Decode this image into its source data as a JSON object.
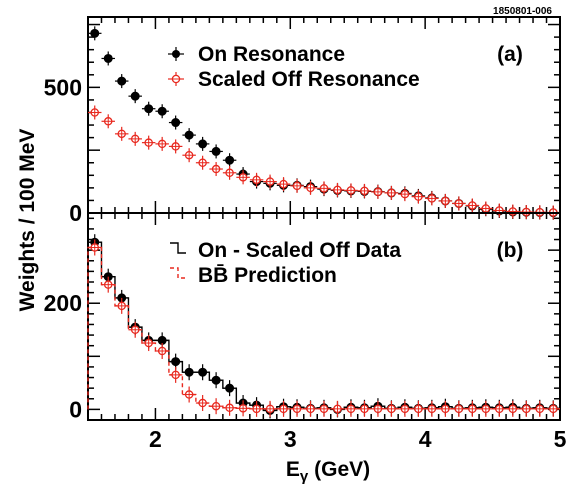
{
  "figure_id": "1850801-006",
  "ylabel": "Weights / 100 MeV",
  "xlabel": "E",
  "xlabel_sub": "γ",
  "xlabel_unit": "(GeV)",
  "chart_data": [
    {
      "panel": "(a)",
      "type": "scatter",
      "xlim": [
        1.5,
        5.0
      ],
      "ylim": [
        0,
        780
      ],
      "x_ticks": [
        2,
        3,
        4,
        5
      ],
      "y_ticks": [
        0,
        500
      ],
      "legend_placement": "top-right",
      "series": [
        {
          "name": "On Resonance",
          "marker": "filled-circle",
          "color": "#000000",
          "x": [
            1.55,
            1.65,
            1.75,
            1.85,
            1.95,
            2.05,
            2.15,
            2.25,
            2.35,
            2.45,
            2.55,
            2.65,
            2.75,
            2.85,
            2.95,
            3.05,
            3.15,
            3.25,
            3.35,
            3.45,
            3.55,
            3.65,
            3.75,
            3.85,
            3.95,
            4.05,
            4.15,
            4.25,
            4.35,
            4.45,
            4.55,
            4.65,
            4.75,
            4.85,
            4.95
          ],
          "y": [
            715,
            615,
            525,
            465,
            415,
            405,
            360,
            310,
            275,
            245,
            210,
            155,
            125,
            118,
            110,
            110,
            105,
            95,
            90,
            88,
            86,
            85,
            80,
            78,
            68,
            60,
            48,
            38,
            28,
            15,
            8,
            4,
            3,
            2,
            1
          ]
        },
        {
          "name": "Scaled Off Resonance",
          "marker": "open-circle-cross",
          "color": "#e8281e",
          "x": [
            1.55,
            1.65,
            1.75,
            1.85,
            1.95,
            2.05,
            2.15,
            2.25,
            2.35,
            2.45,
            2.55,
            2.65,
            2.75,
            2.85,
            2.95,
            3.05,
            3.15,
            3.25,
            3.35,
            3.45,
            3.55,
            3.65,
            3.75,
            3.85,
            3.95,
            4.05,
            4.15,
            4.25,
            4.35,
            4.45,
            4.55,
            4.65,
            4.75,
            4.85,
            4.95
          ],
          "y": [
            400,
            365,
            315,
            295,
            280,
            275,
            265,
            230,
            200,
            175,
            160,
            142,
            132,
            125,
            115,
            108,
            100,
            98,
            92,
            90,
            88,
            84,
            80,
            75,
            65,
            58,
            48,
            38,
            30,
            18,
            10,
            6,
            4,
            3,
            2
          ]
        }
      ]
    },
    {
      "panel": "(b)",
      "type": "scatter",
      "xlim": [
        1.5,
        5.0
      ],
      "ylim": [
        -20,
        370
      ],
      "x_ticks": [
        2,
        3,
        4,
        5
      ],
      "y_ticks": [
        0,
        200
      ],
      "legend_placement": "top-right",
      "series": [
        {
          "name": "On - Scaled Off Data",
          "marker": "filled-circle-with-histogram",
          "color": "#000000",
          "x": [
            1.55,
            1.65,
            1.75,
            1.85,
            1.95,
            2.05,
            2.15,
            2.25,
            2.35,
            2.45,
            2.55,
            2.65,
            2.75,
            2.85,
            2.95,
            3.05,
            3.15,
            3.25,
            3.35,
            3.45,
            3.55,
            3.65,
            3.75,
            3.85,
            3.95,
            4.05,
            4.15,
            4.25,
            4.35,
            4.45,
            4.55,
            4.65,
            4.75,
            4.85,
            4.95
          ],
          "y": [
            315,
            250,
            210,
            155,
            130,
            130,
            90,
            70,
            70,
            55,
            40,
            12,
            8,
            -2,
            5,
            4,
            2,
            3,
            0,
            4,
            3,
            6,
            2,
            4,
            2,
            3,
            5,
            2,
            3,
            4,
            3,
            4,
            2,
            3,
            2
          ]
        },
        {
          "name": "BB̄ Prediction",
          "marker": "open-circle-cross-with-dashed-histogram",
          "color": "#e8281e",
          "x": [
            1.55,
            1.65,
            1.75,
            1.85,
            1.95,
            2.05,
            2.15,
            2.25,
            2.35,
            2.45,
            2.55,
            2.65,
            2.75,
            2.85,
            2.95,
            3.05,
            3.15,
            3.25,
            3.35,
            3.45,
            3.55,
            3.65,
            3.75,
            3.85,
            3.95,
            4.05,
            4.15,
            4.25,
            4.35,
            4.45,
            4.55,
            4.65,
            4.75,
            4.85,
            4.95
          ],
          "y": [
            305,
            235,
            195,
            150,
            125,
            110,
            65,
            28,
            12,
            6,
            3,
            2,
            1,
            1,
            1,
            1,
            1,
            1,
            1,
            1,
            1,
            1,
            1,
            1,
            1,
            1,
            1,
            1,
            1,
            1,
            1,
            1,
            1,
            1,
            1
          ]
        }
      ]
    }
  ]
}
